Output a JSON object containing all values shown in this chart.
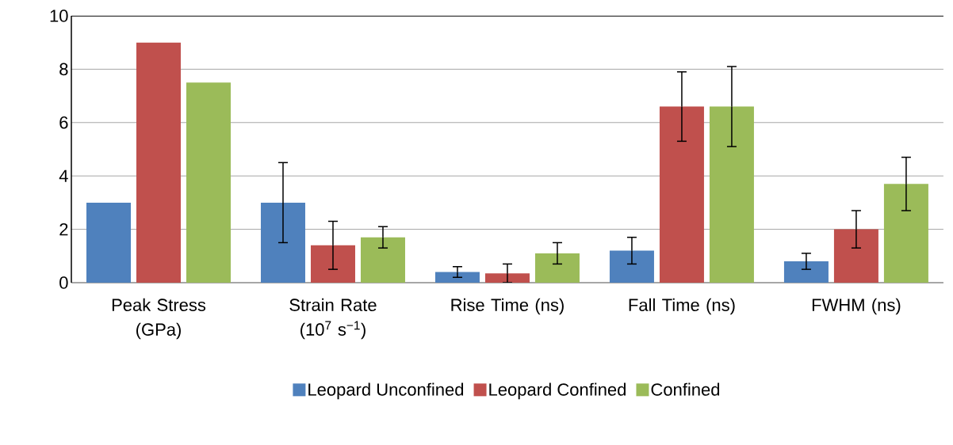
{
  "chart_data": {
    "type": "bar",
    "categories": [
      "Peak Stress (GPa)",
      "Strain Rate (10$^{7}$ s$^{−1}$)",
      "Rise Time (ns)",
      "Fall Time (ns)",
      "FWHM (ns)"
    ],
    "series": [
      {
        "name": "Leopard Unconfined",
        "color": "#4f81bd",
        "values": [
          3.0,
          3.0,
          0.4,
          1.2,
          0.8
        ],
        "errors": [
          null,
          1.5,
          0.2,
          0.5,
          0.3
        ]
      },
      {
        "name": "Leopard Confined",
        "color": "#c0504d",
        "values": [
          9.0,
          1.4,
          0.35,
          6.6,
          2.0
        ],
        "errors": [
          null,
          0.9,
          0.35,
          1.3,
          0.7
        ]
      },
      {
        "name": "Confined",
        "color": "#9bbb59",
        "values": [
          7.5,
          1.7,
          1.1,
          6.6,
          3.7
        ],
        "errors": [
          null,
          0.4,
          0.4,
          1.5,
          1.0
        ]
      }
    ],
    "ylim": [
      0,
      10
    ],
    "yticks": [
      0,
      2,
      4,
      6,
      8,
      10
    ],
    "grid": "y",
    "legend": "bottom"
  }
}
